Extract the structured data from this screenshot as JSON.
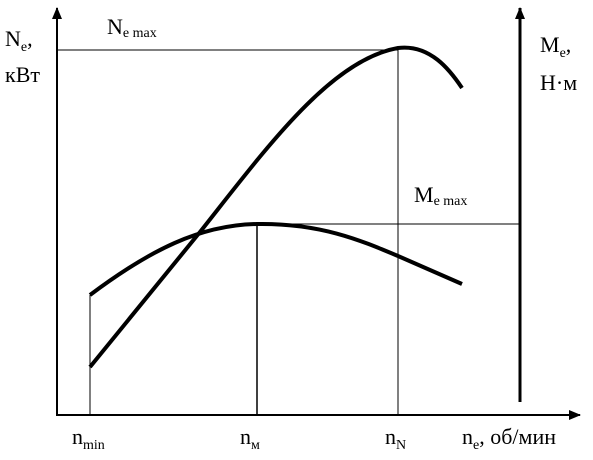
{
  "axes": {
    "left": {
      "symbol": "N",
      "subscript": "e",
      "separator": ",",
      "unit": "кВт"
    },
    "right": {
      "symbol": "M",
      "subscript": "e",
      "separator": ",",
      "unit": "Н·м"
    },
    "x": {
      "symbol": "n",
      "subscript": "e",
      "unit": ", об/мин"
    }
  },
  "annotations": [
    {
      "symbol": "N",
      "subscript": "e max"
    },
    {
      "symbol": "M",
      "subscript": "e max"
    }
  ],
  "x_marks": [
    {
      "symbol": "n",
      "subscript": "min"
    },
    {
      "symbol": "n",
      "subscript": "м"
    },
    {
      "symbol": "n",
      "subscript": "N"
    }
  ]
}
